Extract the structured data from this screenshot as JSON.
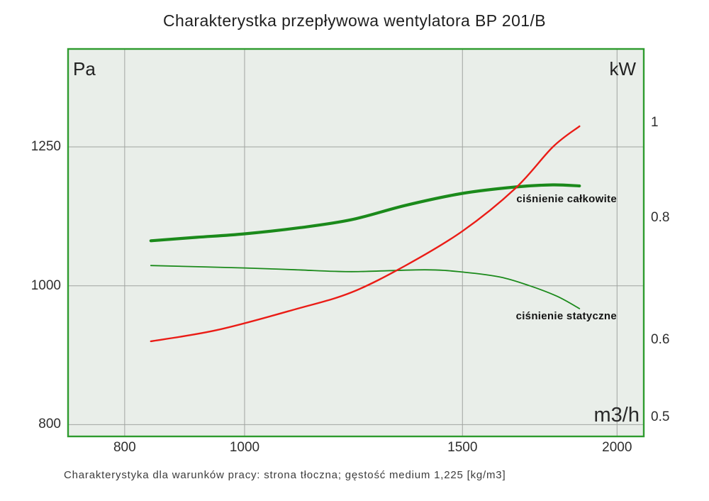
{
  "page": {
    "title": "Charakterystka przepływowa wentylatora BP 201/B",
    "caption": "Charakterystyka dla warunków pracy: strona tłoczna; gęstość medium 1,225 [kg/m3]"
  },
  "chart_data": {
    "type": "line",
    "title": "Charakterystka przepływowa wentylatora BP 201/B",
    "subtitle": "Charakterystyka dla warunków pracy: strona tłoczna; gęstość medium 1,225 [kg/m3]",
    "x_axis": {
      "unit": "m3/h",
      "scale": "log",
      "range": [
        720,
        2102
      ],
      "ticks": [
        {
          "v": 800,
          "label": "800"
        },
        {
          "v": 1000,
          "label": "1000"
        },
        {
          "v": 1500,
          "label": "1500"
        },
        {
          "v": 2000,
          "label": "2000"
        }
      ]
    },
    "y_axis_left": {
      "unit": "Pa",
      "scale": "log",
      "range": [
        785,
        1463
      ],
      "ticks": [
        {
          "v": 1250,
          "label": "1250"
        },
        {
          "v": 1000,
          "label": "1000"
        },
        {
          "v": 800,
          "label": "800"
        }
      ]
    },
    "y_axis_right": {
      "unit": "kW",
      "scale": "log",
      "range": [
        0.478,
        1.19
      ],
      "ticks": [
        {
          "v": 1,
          "label": "1"
        },
        {
          "v": 0.8,
          "label": "0.8"
        },
        {
          "v": 0.6,
          "label": "0.6"
        },
        {
          "v": 0.5,
          "label": "0.5"
        }
      ]
    },
    "grid": {
      "x_ticks": true,
      "y_left_ticks": true,
      "y_right_ticks": false
    },
    "legend": "inline-labels",
    "series": [
      {
        "id": "total-pressure",
        "label": "ciśnienie całkowite",
        "axis": "left",
        "color": "#1b8a1b",
        "width": 4.2,
        "points": [
          [
            840,
            1075
          ],
          [
            915,
            1081
          ],
          [
            1000,
            1087
          ],
          [
            1110,
            1098
          ],
          [
            1220,
            1112
          ],
          [
            1350,
            1138
          ],
          [
            1500,
            1160
          ],
          [
            1655,
            1172
          ],
          [
            1775,
            1176
          ],
          [
            1865,
            1174
          ]
        ]
      },
      {
        "id": "static-pressure",
        "label": "ciśnienie statyczne",
        "axis": "left",
        "color": "#1b8a1b",
        "width": 1.8,
        "points": [
          [
            840,
            1033
          ],
          [
            1000,
            1029
          ],
          [
            1100,
            1026
          ],
          [
            1220,
            1023
          ],
          [
            1400,
            1026
          ],
          [
            1505,
            1022
          ],
          [
            1610,
            1014
          ],
          [
            1700,
            1000
          ],
          [
            1790,
            983
          ],
          [
            1865,
            964
          ]
        ]
      },
      {
        "id": "power",
        "label": "",
        "axis": "right",
        "color": "#ea1c16",
        "width": 2.4,
        "points": [
          [
            840,
            0.598
          ],
          [
            950,
            0.614
          ],
          [
            1100,
            0.645
          ],
          [
            1220,
            0.671
          ],
          [
            1350,
            0.715
          ],
          [
            1500,
            0.775
          ],
          [
            1655,
            0.857
          ],
          [
            1775,
            0.945
          ],
          [
            1865,
            0.992
          ]
        ]
      }
    ],
    "colors": {
      "plot_bg": "#e9eee9",
      "border": "#2e9b2e",
      "grid": "#a0a4a0",
      "curve_green": "#1b8a1b",
      "curve_red": "#ea1c16"
    }
  }
}
